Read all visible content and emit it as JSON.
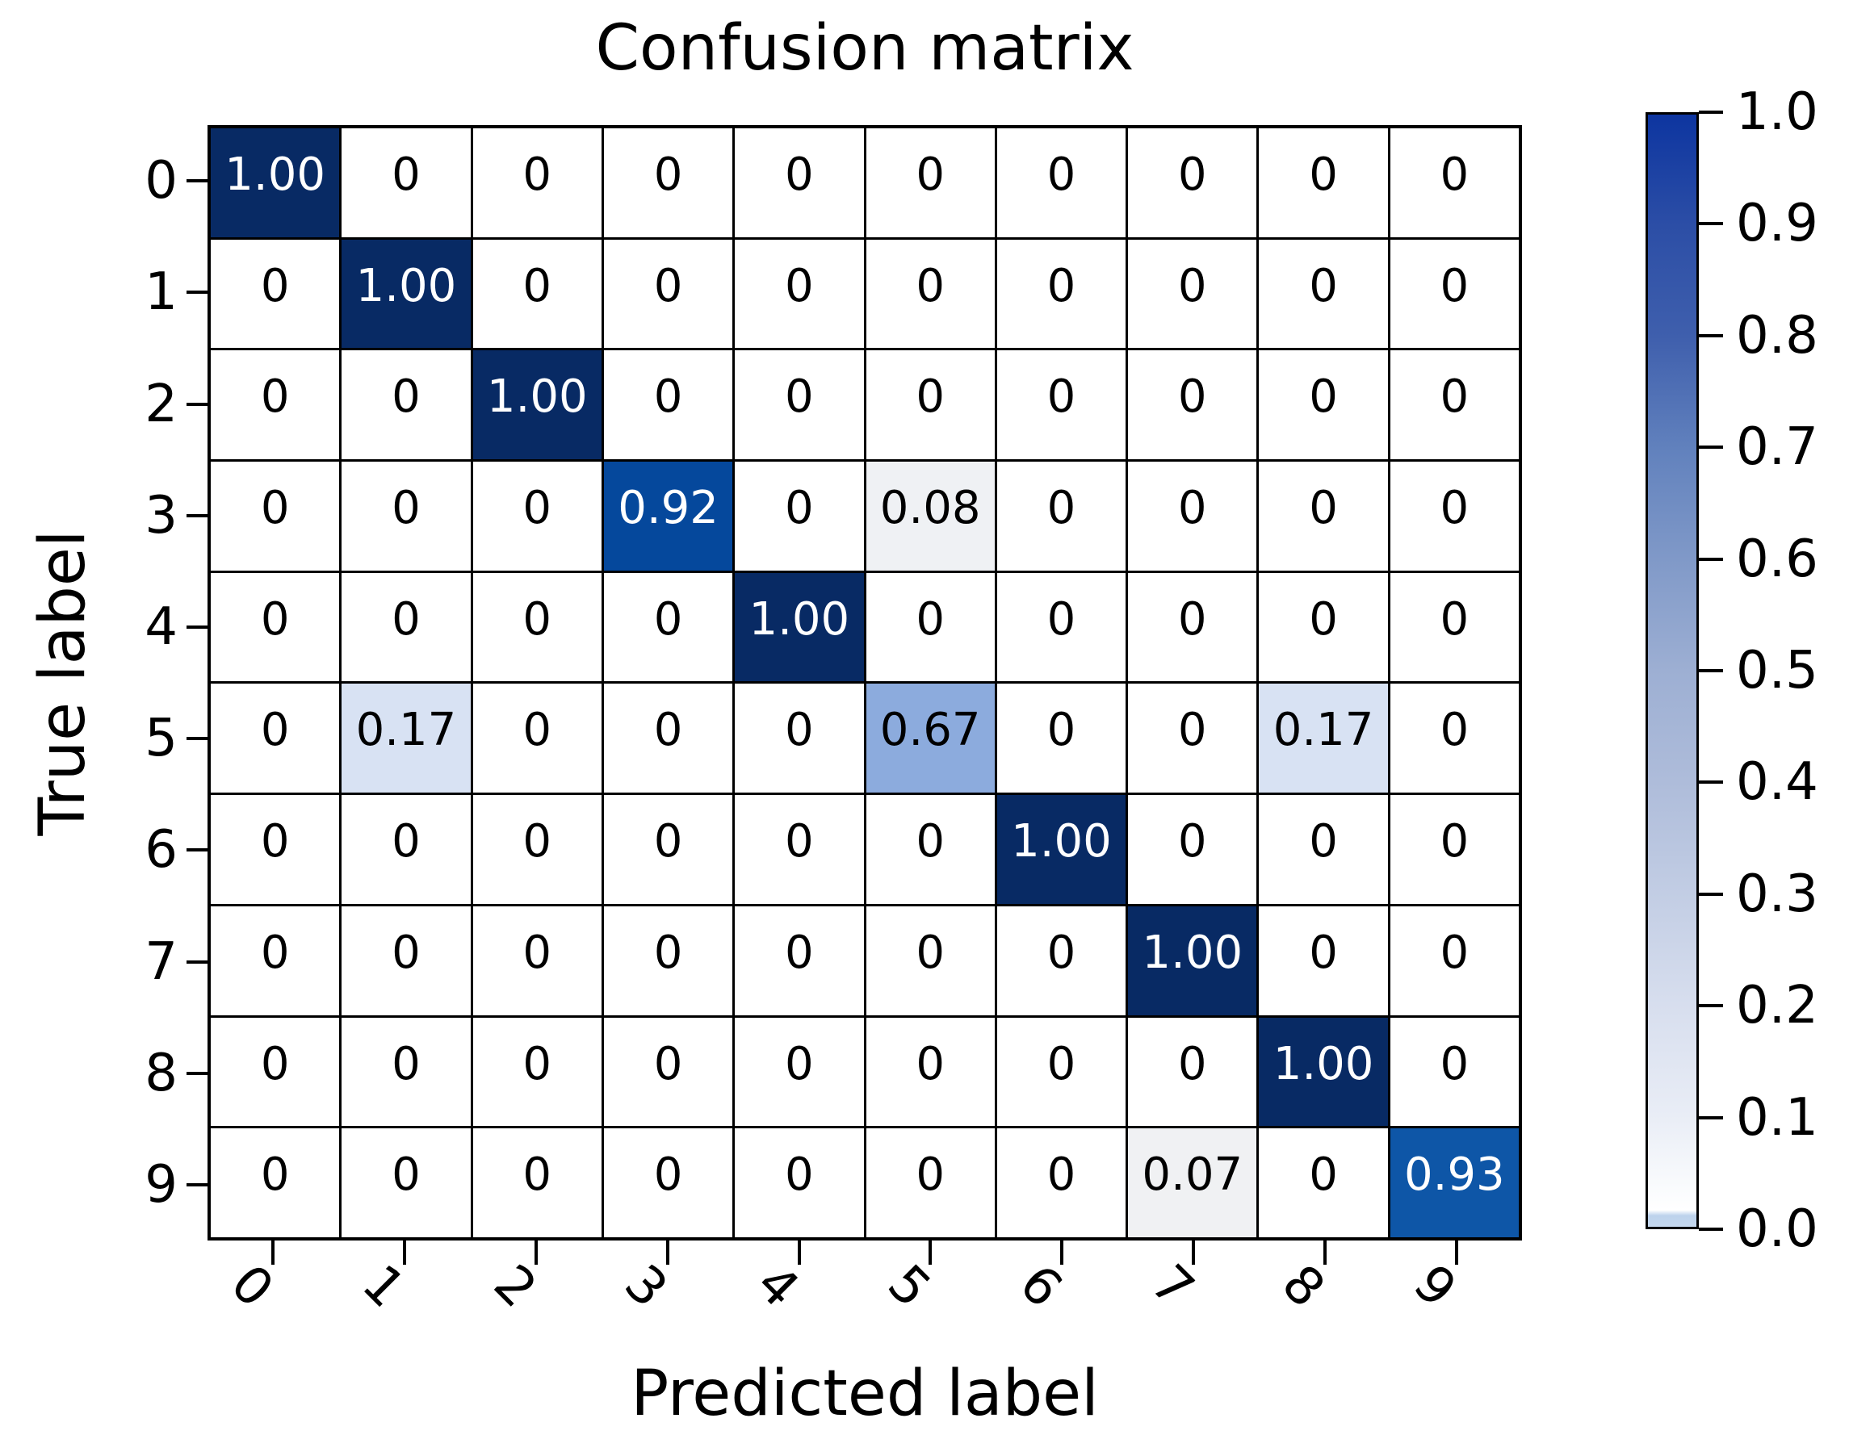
{
  "chart_data": {
    "type": "heatmap",
    "title": "Confusion matrix",
    "xlabel": "Predicted label",
    "ylabel": "True label",
    "x_tick_labels": [
      "0",
      "1",
      "2",
      "3",
      "4",
      "5",
      "6",
      "7",
      "8",
      "9"
    ],
    "y_tick_labels": [
      "0",
      "1",
      "2",
      "3",
      "4",
      "5",
      "6",
      "7",
      "8",
      "9"
    ],
    "value_range": [
      0.0,
      1.0
    ],
    "grid_on": false,
    "legend_position": "colorbar-right",
    "matrix": [
      [
        1.0,
        0,
        0,
        0,
        0,
        0,
        0,
        0,
        0,
        0
      ],
      [
        0,
        1.0,
        0,
        0,
        0,
        0,
        0,
        0,
        0,
        0
      ],
      [
        0,
        0,
        1.0,
        0,
        0,
        0,
        0,
        0,
        0,
        0
      ],
      [
        0,
        0,
        0,
        0.92,
        0,
        0.08,
        0,
        0,
        0,
        0
      ],
      [
        0,
        0,
        0,
        0,
        1.0,
        0,
        0,
        0,
        0,
        0
      ],
      [
        0,
        0.17,
        0,
        0,
        0,
        0.67,
        0,
        0,
        0.17,
        0
      ],
      [
        0,
        0,
        0,
        0,
        0,
        0,
        1.0,
        0,
        0,
        0
      ],
      [
        0,
        0,
        0,
        0,
        0,
        0,
        0,
        1.0,
        0,
        0
      ],
      [
        0,
        0,
        0,
        0,
        0,
        0,
        0,
        0,
        1.0,
        0
      ],
      [
        0,
        0,
        0,
        0,
        0,
        0,
        0,
        0.07,
        0,
        0.93
      ]
    ],
    "cell_text": [
      [
        "1.00",
        "0",
        "0",
        "0",
        "0",
        "0",
        "0",
        "0",
        "0",
        "0"
      ],
      [
        "0",
        "1.00",
        "0",
        "0",
        "0",
        "0",
        "0",
        "0",
        "0",
        "0"
      ],
      [
        "0",
        "0",
        "1.00",
        "0",
        "0",
        "0",
        "0",
        "0",
        "0",
        "0"
      ],
      [
        "0",
        "0",
        "0",
        "0.92",
        "0",
        "0.08",
        "0",
        "0",
        "0",
        "0"
      ],
      [
        "0",
        "0",
        "0",
        "0",
        "1.00",
        "0",
        "0",
        "0",
        "0",
        "0"
      ],
      [
        "0",
        "0.17",
        "0",
        "0",
        "0",
        "0.67",
        "0",
        "0",
        "0.17",
        "0"
      ],
      [
        "0",
        "0",
        "0",
        "0",
        "0",
        "0",
        "1.00",
        "0",
        "0",
        "0"
      ],
      [
        "0",
        "0",
        "0",
        "0",
        "0",
        "0",
        "0",
        "1.00",
        "0",
        "0"
      ],
      [
        "0",
        "0",
        "0",
        "0",
        "0",
        "0",
        "0",
        "0",
        "1.00",
        "0"
      ],
      [
        "0",
        "0",
        "0",
        "0",
        "0",
        "0",
        "0",
        "0.07",
        "0",
        "0.93"
      ]
    ],
    "value_colors": {
      "0": "#ffffff",
      "0.07": "#f0f1f3",
      "0.08": "#eff1f4",
      "0.17": "#d8e2f3",
      "0.67": "#8cabdd",
      "0.92": "#05489c",
      "0.93": "#0e56a7",
      "1": "#082a64"
    },
    "white_text_threshold": 0.8,
    "colorbar": {
      "tick_labels": [
        "1.0",
        "0.9",
        "0.8",
        "0.7",
        "0.6",
        "0.5",
        "0.4",
        "0.3",
        "0.2",
        "0.1",
        "0.0"
      ],
      "gradient_stops": [
        [
          0.0,
          "#0d35a0"
        ],
        [
          0.1,
          "#2c4ea6"
        ],
        [
          0.2,
          "#3f5fad"
        ],
        [
          0.3,
          "#6181bd"
        ],
        [
          0.4,
          "#8099c8"
        ],
        [
          0.5,
          "#9dafd3"
        ],
        [
          0.6,
          "#aebcda"
        ],
        [
          0.7,
          "#c2cde4"
        ],
        [
          0.8,
          "#d7deee"
        ],
        [
          0.9,
          "#e9edf6"
        ],
        [
          0.975,
          "#fcfdfe"
        ],
        [
          0.985,
          "#ffffff"
        ],
        [
          0.99,
          "#bcd2ec"
        ],
        [
          1.0,
          "#c6d8ee"
        ]
      ]
    }
  }
}
